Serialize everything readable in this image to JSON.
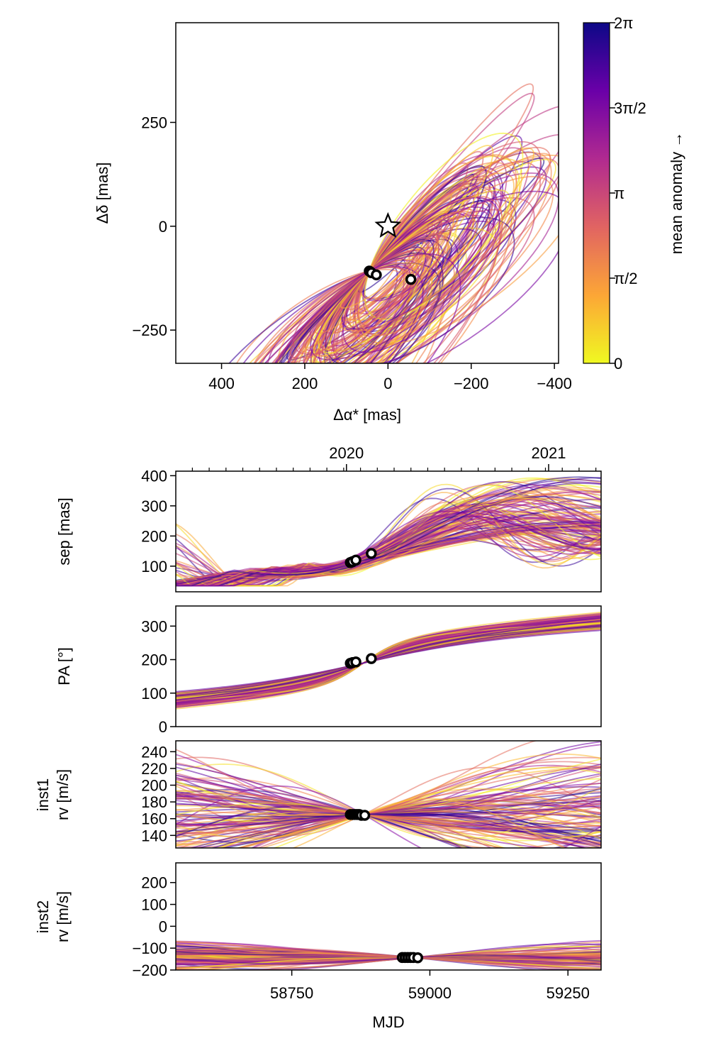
{
  "chart_data": [
    {
      "type": "scatter",
      "panel": "orbit-sky",
      "xlabel": "Δα* [mas]",
      "ylabel": "Δδ [mas]",
      "xlim": [
        510,
        -410
      ],
      "ylim": [
        -330,
        490
      ],
      "xticks": [
        400,
        200,
        0,
        -200,
        -400
      ],
      "xtick_labels": [
        "400",
        "200",
        "0",
        "−200",
        "−400"
      ],
      "yticks": [
        -250,
        0,
        250
      ],
      "ytick_labels": [
        "−250",
        "0",
        "250"
      ],
      "star": [
        0,
        0
      ],
      "points": [
        [
          45,
          -108
        ],
        [
          42,
          -110
        ],
        [
          40,
          -112
        ],
        [
          28,
          -117
        ],
        [
          -55,
          -128
        ]
      ]
    },
    {
      "type": "colorbar",
      "panel": "colorbar",
      "label": "mean anomaly →",
      "ticks": [
        "0",
        "π/2",
        "π",
        "3π/2",
        "2π"
      ],
      "colors": [
        "#f0f921",
        "#fca636",
        "#e16462",
        "#b12a90",
        "#6a00a8",
        "#0d0887"
      ]
    },
    {
      "type": "line",
      "panel": "sep",
      "ylabel": "sep [mas]",
      "xlim": [
        58540,
        59310
      ],
      "ylim": [
        15,
        415
      ],
      "yticks": [
        100,
        200,
        300,
        400
      ],
      "ytick_labels": [
        "100",
        "200",
        "300",
        "400"
      ],
      "top_ticks": [
        58849,
        59215
      ],
      "top_tick_labels": [
        "2020",
        "2021"
      ],
      "points": [
        [
          58856,
          112
        ],
        [
          58860,
          115
        ],
        [
          58866,
          120
        ],
        [
          58894,
          142
        ]
      ]
    },
    {
      "type": "line",
      "panel": "pa",
      "ylabel": "PA [°]",
      "xlim": [
        58540,
        59310
      ],
      "ylim": [
        0,
        360
      ],
      "yticks": [
        0,
        100,
        200,
        300
      ],
      "ytick_labels": [
        "0",
        "100",
        "200",
        "300"
      ],
      "points": [
        [
          58856,
          189
        ],
        [
          58860,
          191
        ],
        [
          58866,
          193
        ],
        [
          58894,
          203
        ]
      ]
    },
    {
      "type": "line",
      "panel": "rv1",
      "ylabel": "inst1 rv [m/s]",
      "ylabel_lines": [
        "inst1",
        "rv [m/s]"
      ],
      "xlim": [
        58540,
        59310
      ],
      "ylim": [
        125,
        253
      ],
      "yticks": [
        140,
        160,
        180,
        200,
        220,
        240
      ],
      "ytick_labels": [
        "140",
        "160",
        "180",
        "200",
        "220",
        "240"
      ],
      "points": [
        [
          58856,
          165
        ],
        [
          58860,
          165
        ],
        [
          58864,
          165
        ],
        [
          58868,
          165
        ],
        [
          58872,
          165
        ],
        [
          58876,
          164
        ],
        [
          58882,
          164
        ]
      ]
    },
    {
      "type": "line",
      "panel": "rv2",
      "ylabel": "inst2 rv [m/s]",
      "ylabel_lines": [
        "inst2",
        "rv [m/s]"
      ],
      "xlabel": "MJD",
      "xlim": [
        58540,
        59310
      ],
      "ylim": [
        -200,
        290
      ],
      "yticks": [
        -200,
        -100,
        0,
        100,
        200
      ],
      "ytick_labels": [
        "−200",
        "−100",
        "0",
        "100",
        "200"
      ],
      "xticks": [
        58750,
        59000,
        59250
      ],
      "xtick_labels": [
        "58750",
        "59000",
        "59250"
      ],
      "points": [
        [
          58950,
          -143
        ],
        [
          58955,
          -143
        ],
        [
          58960,
          -143
        ],
        [
          58965,
          -143
        ],
        [
          58970,
          -143
        ],
        [
          58978,
          -144
        ]
      ]
    }
  ]
}
